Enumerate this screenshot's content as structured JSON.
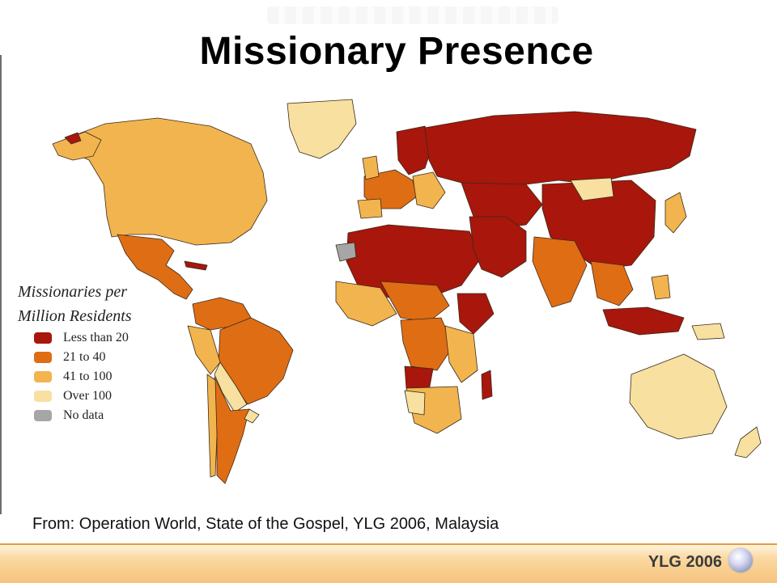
{
  "title": "Missionary Presence",
  "legend": {
    "title_line1": "Missionaries per",
    "title_line2": "Million Residents",
    "items": [
      {
        "label": "Less than 20",
        "color": "#a8160c"
      },
      {
        "label": "21 to 40",
        "color": "#df6d14"
      },
      {
        "label": "41 to 100",
        "color": "#f2b44e"
      },
      {
        "label": "Over 100",
        "color": "#f7e0a0"
      },
      {
        "label": "No data",
        "color": "#a6a6a6"
      }
    ]
  },
  "source": "From:  Operation World, State of the Gospel, YLG 2006, Malaysia",
  "footer": {
    "logo_text": "YLG 2006",
    "logo_icon": "globe-icon"
  }
}
